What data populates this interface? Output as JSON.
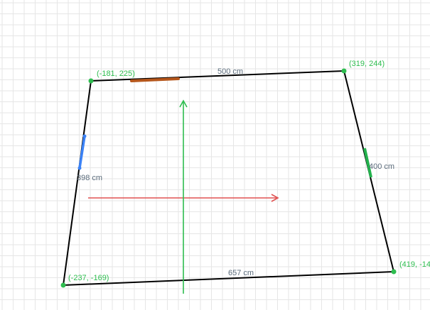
{
  "corners": [
    {
      "id": "top-left",
      "label": "(-181, 225)"
    },
    {
      "id": "top-right",
      "label": "(319, 244)"
    },
    {
      "id": "bottom-right",
      "label": "(419, -14"
    },
    {
      "id": "bottom-left",
      "label": "(-237, -169)"
    }
  ],
  "edges": {
    "top": "500 cm",
    "right": "400 cm",
    "bottom": "657 cm",
    "left": "398 cm"
  },
  "colors": {
    "corner": "#2ebd4f",
    "edge": "#000000",
    "x_axis": "#e05252",
    "y_axis": "#2ebd4f",
    "top_marker": "#b5561b",
    "left_marker": "#3b82f6",
    "right_marker": "#22b14c"
  }
}
